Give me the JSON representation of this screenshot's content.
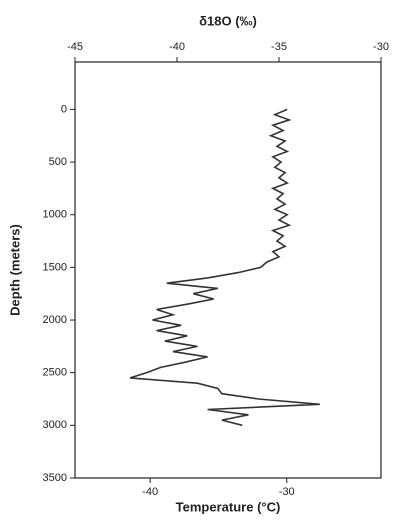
{
  "chart_data": {
    "type": "profile",
    "x_label": "δ18O (‰)",
    "x2_label": "Temperature (°C)",
    "y_label": "Depth (meters)",
    "depth": [
      0,
      50,
      100,
      150,
      200,
      250,
      300,
      350,
      400,
      450,
      500,
      550,
      600,
      650,
      700,
      750,
      800,
      850,
      900,
      950,
      1000,
      1050,
      1100,
      1150,
      1200,
      1250,
      1300,
      1350,
      1400,
      1450,
      1500,
      1550,
      1600,
      1650,
      1700,
      1750,
      1800,
      1850,
      1900,
      1950,
      2000,
      2050,
      2100,
      2150,
      2200,
      2250,
      2300,
      2350,
      2400,
      2450,
      2500,
      2550,
      2600,
      2650,
      2700,
      2750,
      2800,
      2850,
      2900,
      2950,
      3000
    ],
    "values": [
      -34.6,
      -35.2,
      -34.5,
      -35.3,
      -34.8,
      -35.4,
      -34.7,
      -35.1,
      -34.6,
      -35.3,
      -34.9,
      -35.2,
      -34.7,
      -35.0,
      -34.6,
      -35.3,
      -34.8,
      -35.1,
      -34.7,
      -35.2,
      -34.6,
      -35.0,
      -34.5,
      -35.3,
      -34.8,
      -35.1,
      -34.7,
      -35.3,
      -35.0,
      -35.6,
      -35.9,
      -37.0,
      -38.5,
      -40.5,
      -38.0,
      -39.2,
      -38.2,
      -39.5,
      -41.0,
      -40.2,
      -41.2,
      -39.8,
      -41.0,
      -39.5,
      -40.6,
      -39.0,
      -40.2,
      -38.5,
      -39.6,
      -40.8,
      -41.5,
      -42.3,
      -39.0,
      -38.0,
      -37.8,
      -36.0,
      -33.0,
      -38.5,
      -36.5,
      -37.8,
      -36.8
    ],
    "color": "#333333",
    "xlim": [
      -45,
      -30
    ],
    "xticks": [
      -45,
      -40,
      -35,
      -30
    ],
    "x2lim": [
      -45.5,
      -23.1
    ],
    "x2ticks": [
      -40,
      -30
    ],
    "ylim": [
      3500,
      -450
    ],
    "yticks": [
      0,
      500,
      1000,
      1500,
      2000,
      2500,
      3000,
      3500
    ]
  }
}
